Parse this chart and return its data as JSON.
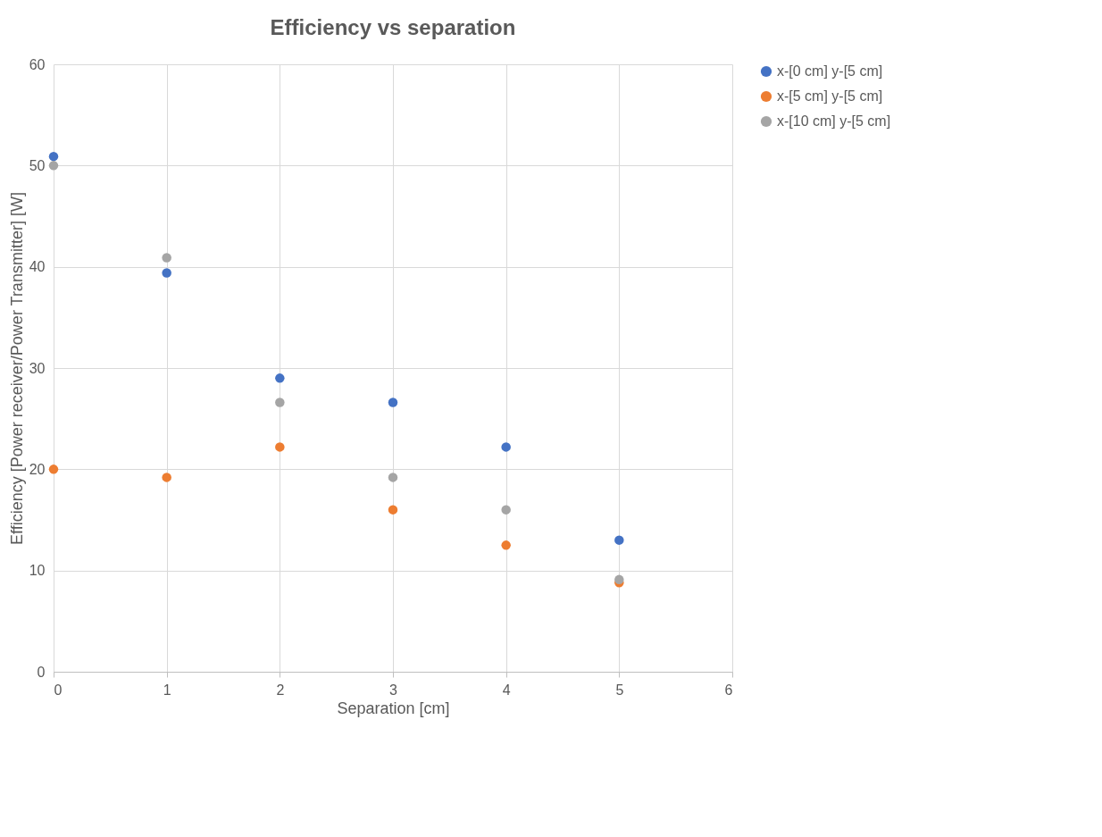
{
  "chart_data": {
    "type": "scatter",
    "title": "Efficiency vs separation",
    "xlabel": "Separation [cm]",
    "ylabel": "Efficiency [Power receiver/Power Transmitter] [W]",
    "x": [
      0,
      1,
      2,
      3,
      4,
      5
    ],
    "series": [
      {
        "name": "x-[0 cm] y-[5 cm]",
        "color": "#4472c4",
        "values": [
          50.9,
          39.4,
          29.0,
          26.6,
          22.2,
          13.0
        ]
      },
      {
        "name": "x-[5 cm] y-[5 cm]",
        "color": "#ed7d31",
        "values": [
          20.0,
          19.2,
          22.2,
          16.0,
          12.5,
          8.8
        ]
      },
      {
        "name": "x-[10 cm] y-[5 cm]",
        "color": "#a5a5a5",
        "values": [
          50.0,
          40.9,
          26.6,
          19.2,
          16.0,
          9.1
        ]
      }
    ],
    "xlim": [
      0,
      6
    ],
    "xticks": [
      0,
      1,
      2,
      3,
      4,
      5,
      6
    ],
    "ylim": [
      0,
      60
    ],
    "yticks": [
      0,
      10,
      20,
      30,
      40,
      50,
      60
    ],
    "grid": true,
    "legend": "right",
    "marker": "circle"
  }
}
